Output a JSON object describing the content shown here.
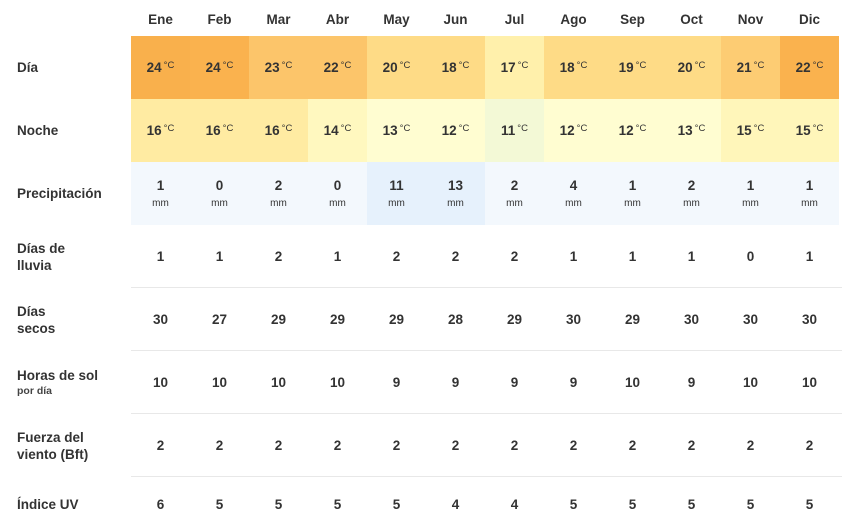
{
  "months": [
    "Ene",
    "Feb",
    "Mar",
    "Abr",
    "May",
    "Jun",
    "Jul",
    "Ago",
    "Sep",
    "Oct",
    "Nov",
    "Dic"
  ],
  "unit_temp": "°C",
  "unit_precip": "mm",
  "rows": {
    "dia": {
      "label": "Día",
      "values": [
        "24",
        "24",
        "23",
        "22",
        "20",
        "18",
        "17",
        "18",
        "19",
        "20",
        "21",
        "22"
      ],
      "colors": [
        "#f9b04c",
        "#fab24e",
        "#fcc56a",
        "#fcc56a",
        "#fedb86",
        "#fedb86",
        "#fff0ab",
        "#fedb86",
        "#fedb86",
        "#fedb86",
        "#fdcc73",
        "#fab24e"
      ]
    },
    "noche": {
      "label": "Noche",
      "values": [
        "16",
        "16",
        "16",
        "14",
        "13",
        "12",
        "11",
        "12",
        "12",
        "13",
        "15",
        "15"
      ],
      "colors": [
        "#ffeba2",
        "#ffeba2",
        "#ffeba2",
        "#fff8bf",
        "#fffdd1",
        "#fffdd1",
        "#f3f9d6",
        "#fffdd1",
        "#fffdd1",
        "#fffdd1",
        "#fff6ba",
        "#fff6ba"
      ]
    },
    "precipitacion": {
      "label": "Precipitación",
      "values": [
        "1",
        "0",
        "2",
        "0",
        "11",
        "13",
        "2",
        "4",
        "1",
        "2",
        "1",
        "1"
      ],
      "colors": [
        "#f3f8fd",
        "#f3f8fd",
        "#f3f8fd",
        "#f3f8fd",
        "#e6f1fc",
        "#e6f1fc",
        "#f3f8fd",
        "#f3f8fd",
        "#f3f8fd",
        "#f3f8fd",
        "#f3f8fd",
        "#f3f8fd"
      ]
    },
    "dias_lluvia": {
      "label_line1": "Días de",
      "label_line2": "lluvia",
      "values": [
        "1",
        "1",
        "2",
        "1",
        "2",
        "2",
        "2",
        "1",
        "1",
        "1",
        "0",
        "1"
      ]
    },
    "dias_secos": {
      "label_line1": "Días",
      "label_line2": "secos",
      "values": [
        "30",
        "27",
        "29",
        "29",
        "29",
        "28",
        "29",
        "30",
        "29",
        "30",
        "30",
        "30"
      ]
    },
    "horas_sol": {
      "label": "Horas de sol",
      "sublabel": "por día",
      "values": [
        "10",
        "10",
        "10",
        "10",
        "9",
        "9",
        "9",
        "9",
        "10",
        "9",
        "10",
        "10"
      ]
    },
    "viento": {
      "label_line1": "Fuerza del",
      "label_line2": "viento (Bft)",
      "values": [
        "2",
        "2",
        "2",
        "2",
        "2",
        "2",
        "2",
        "2",
        "2",
        "2",
        "2",
        "2"
      ]
    },
    "uv": {
      "label": "Índice UV",
      "values": [
        "6",
        "5",
        "5",
        "5",
        "5",
        "4",
        "4",
        "5",
        "5",
        "5",
        "5",
        "5"
      ]
    }
  }
}
